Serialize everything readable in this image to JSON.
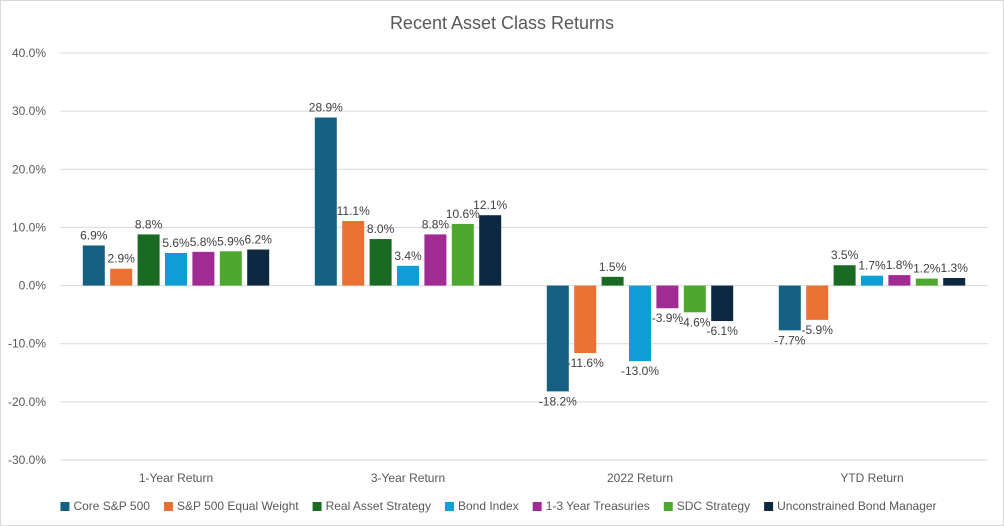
{
  "chart_data": {
    "type": "bar",
    "title": "Recent Asset Class Returns",
    "categories": [
      "1-Year Return",
      "3-Year Return",
      "2022 Return",
      "YTD Return"
    ],
    "ylim": [
      -30,
      40
    ],
    "yticks": [
      "40.0%",
      "30.0%",
      "20.0%",
      "10.0%",
      "0.0%",
      "-10.0%",
      "-20.0%",
      "-30.0%"
    ],
    "ytick_values": [
      40,
      30,
      20,
      10,
      0,
      -10,
      -20,
      -30
    ],
    "grid": true,
    "legend_position": "bottom",
    "series": [
      {
        "name": "Core S&P 500",
        "color": "#156082",
        "values": [
          6.9,
          28.9,
          -18.2,
          -7.7
        ],
        "labels": [
          "6.9%",
          "28.9%",
          "-18.2%",
          "-7.7%"
        ]
      },
      {
        "name": "S&P 500 Equal Weight",
        "color": "#E97132",
        "values": [
          2.9,
          11.1,
          -11.6,
          -5.9
        ],
        "labels": [
          "2.9%",
          "11.1%",
          "-11.6%",
          "-5.9%"
        ]
      },
      {
        "name": "Real Asset Strategy",
        "color": "#196B24",
        "values": [
          8.8,
          8.0,
          1.5,
          3.5
        ],
        "labels": [
          "8.8%",
          "8.0%",
          "1.5%",
          "3.5%"
        ]
      },
      {
        "name": "Bond Index",
        "color": "#0F9ED5",
        "values": [
          5.6,
          3.4,
          -13.0,
          1.7
        ],
        "labels": [
          "5.6%",
          "3.4%",
          "-13.0%",
          "1.7%"
        ]
      },
      {
        "name": "1-3 Year Treasuries",
        "color": "#A02B93",
        "values": [
          5.8,
          8.8,
          -3.9,
          1.8
        ],
        "labels": [
          "5.8%",
          "8.8%",
          "-3.9%",
          "1.8%"
        ]
      },
      {
        "name": "SDC Strategy",
        "color": "#4EA72E",
        "values": [
          5.9,
          10.6,
          -4.6,
          1.2
        ],
        "labels": [
          "5.9%",
          "10.6%",
          "-4.6%",
          "1.2%"
        ]
      },
      {
        "name": "Unconstrained Bond Manager",
        "color": "#0E2841",
        "values": [
          6.2,
          12.1,
          -6.1,
          1.3
        ],
        "labels": [
          "6.2%",
          "12.1%",
          "-6.1%",
          "1.3%"
        ]
      }
    ]
  }
}
